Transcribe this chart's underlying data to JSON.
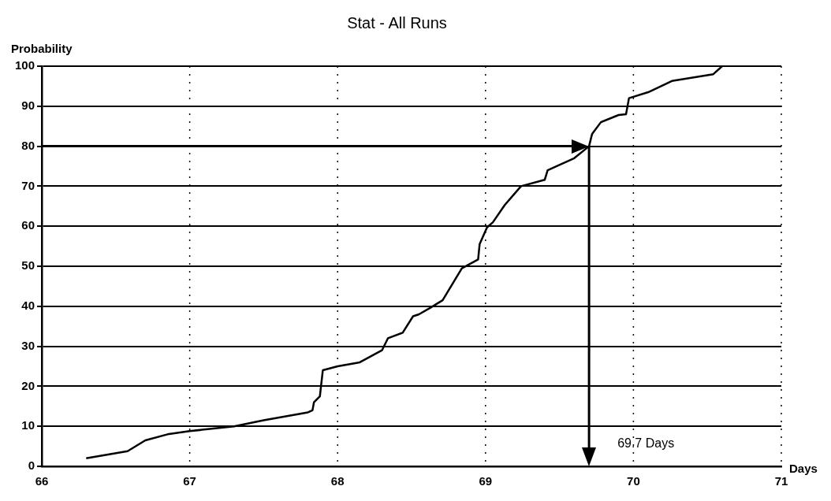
{
  "chart_data": {
    "type": "line",
    "title": "Stat - All Runs",
    "xlabel": "Days",
    "ylabel": "Probability",
    "series": [
      {
        "color": "#000000",
        "x": [
          66.3,
          66.58,
          66.7,
          66.85,
          67.0,
          67.3,
          67.5,
          67.65,
          67.8,
          67.83,
          67.84,
          67.88,
          67.9,
          68.0,
          68.15,
          68.3,
          68.34,
          68.44,
          68.51,
          68.55,
          68.63,
          68.71,
          68.84,
          68.95,
          68.96,
          69.01,
          69.05,
          69.13,
          69.24,
          69.4,
          69.42,
          69.6,
          69.7,
          69.72,
          69.78,
          69.9,
          69.95,
          69.97,
          70.1,
          70.26,
          70.54,
          70.6
        ],
        "values": [
          2,
          3.8,
          6.5,
          8,
          8.8,
          10,
          11.5,
          12.5,
          13.5,
          14,
          16,
          17.5,
          24,
          25,
          26,
          29,
          32,
          33.4,
          37.5,
          38,
          39.7,
          41.5,
          49.5,
          51.7,
          55.5,
          59.7,
          61,
          65.3,
          70,
          71.6,
          74,
          77,
          80,
          83,
          86,
          87.8,
          88,
          92,
          93.5,
          96.3,
          98,
          100
        ]
      }
    ],
    "xlim": [
      66,
      71
    ],
    "xticks": [
      66,
      67,
      68,
      69,
      70,
      71
    ],
    "ylim": [
      0,
      100
    ],
    "yticks": [
      0,
      10,
      20,
      30,
      40,
      50,
      60,
      70,
      80,
      90,
      100
    ],
    "grid": true,
    "legend": false,
    "marker": "none",
    "line_style": "solid",
    "ref_lines": [
      {
        "axis": "y",
        "value": 80,
        "color": "#000000"
      },
      {
        "axis": "x",
        "value": 69.7,
        "label": "69.7 Days",
        "color": "#000000"
      }
    ]
  }
}
